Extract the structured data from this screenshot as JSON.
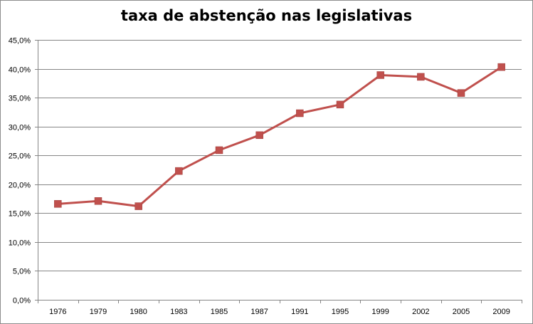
{
  "chart_data": {
    "type": "line",
    "title": "taxa de abstenção nas legislativas",
    "xlabel": "",
    "ylabel": "",
    "categories": [
      "1976",
      "1979",
      "1980",
      "1983",
      "1985",
      "1987",
      "1991",
      "1995",
      "1999",
      "2002",
      "2005",
      "2009"
    ],
    "series": [
      {
        "name": "taxa de abstenção",
        "values": [
          16.6,
          17.1,
          16.2,
          22.3,
          25.9,
          28.5,
          32.3,
          33.8,
          38.9,
          38.6,
          35.8,
          40.3
        ],
        "color": "#c0504d"
      }
    ],
    "ylim": [
      0,
      45
    ],
    "y_ticks": [
      "0,0%",
      "5,0%",
      "10,0%",
      "15,0%",
      "20,0%",
      "25,0%",
      "30,0%",
      "35,0%",
      "40,0%",
      "45,0%"
    ],
    "grid": true,
    "legend": "none"
  }
}
